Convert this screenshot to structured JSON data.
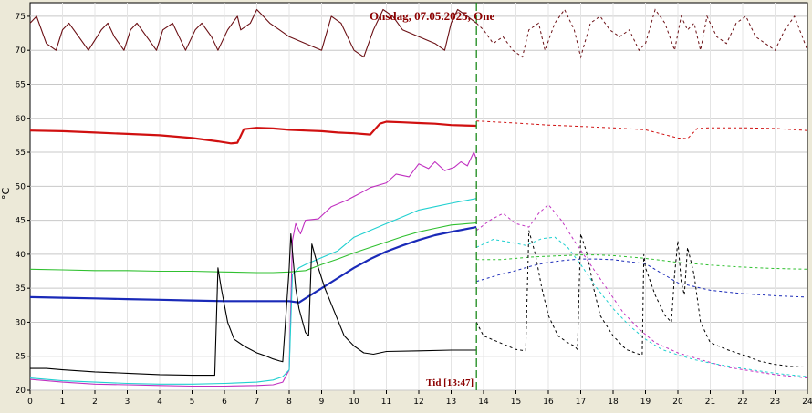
{
  "chart_data": {
    "type": "line",
    "title": "Onsdag, 07.05.2025, One",
    "ylabel": "°C",
    "now_label": "Tid [13:47]",
    "now_x": 13.78,
    "xlim": [
      0,
      24
    ],
    "ylim": [
      20,
      77
    ],
    "xticks": [
      0,
      1,
      2,
      3,
      4,
      5,
      6,
      7,
      8,
      9,
      10,
      11,
      12,
      13,
      14,
      15,
      16,
      17,
      18,
      19,
      20,
      21,
      22,
      23,
      24
    ],
    "yticks": [
      20,
      25,
      30,
      35,
      40,
      45,
      50,
      55,
      60,
      65,
      70,
      75
    ],
    "grid": true,
    "series": [
      {
        "color": "#6b0f14",
        "actual": {
          "x": [
            0,
            0.2,
            0.5,
            0.8,
            1,
            1.2,
            1.5,
            1.8,
            2.2,
            2.4,
            2.6,
            2.9,
            3.1,
            3.3,
            3.6,
            3.9,
            4.1,
            4.4,
            4.6,
            4.8,
            5.1,
            5.3,
            5.6,
            5.8,
            6.1,
            6.4,
            6.5,
            6.8,
            7,
            7.2,
            7.4,
            7.7,
            8,
            8.5,
            9,
            9.3,
            9.6,
            10,
            10.3,
            10.6,
            10.9,
            11.2,
            11.5,
            12,
            12.5,
            12.8,
            13,
            13.2,
            13.5,
            13.78
          ],
          "y": [
            74,
            75,
            71,
            70,
            73,
            74,
            72,
            70,
            73,
            74,
            72,
            70,
            73,
            74,
            72,
            70,
            73,
            74,
            72,
            70,
            73,
            74,
            72,
            70,
            73,
            75,
            73,
            74,
            76,
            75,
            74,
            73,
            72,
            71,
            70,
            75,
            74,
            70,
            69,
            73,
            76,
            75,
            73,
            72,
            71,
            70,
            74,
            76,
            75,
            74
          ]
        },
        "forecast": {
          "x": [
            13.78,
            14,
            14.3,
            14.6,
            14.9,
            15.2,
            15.4,
            15.7,
            15.9,
            16.2,
            16.5,
            16.8,
            17,
            17.3,
            17.6,
            17.9,
            18.2,
            18.5,
            18.8,
            19,
            19.3,
            19.6,
            19.9,
            20.1,
            20.3,
            20.5,
            20.7,
            20.9,
            21.2,
            21.5,
            21.8,
            22.1,
            22.4,
            22.7,
            23,
            23.3,
            23.6,
            24
          ],
          "y": [
            74,
            73,
            71,
            72,
            70,
            69,
            73,
            74,
            70,
            74,
            76,
            73,
            69,
            74,
            75,
            73,
            72,
            73,
            70,
            71,
            76,
            74,
            70,
            75,
            73,
            74,
            70,
            75,
            72,
            71,
            74,
            75,
            72,
            71,
            70,
            73,
            75,
            70
          ]
        }
      },
      {
        "color": "#d01010",
        "actual": {
          "x": [
            0,
            1,
            2,
            3,
            4,
            5,
            5.8,
            6.2,
            6.4,
            6.6,
            7,
            7.5,
            8,
            8.5,
            9,
            9.5,
            10,
            10.5,
            10.8,
            11,
            11.5,
            12,
            12.5,
            13,
            13.78
          ],
          "y": [
            58.2,
            58.1,
            57.9,
            57.7,
            57.5,
            57.1,
            56.6,
            56.3,
            56.4,
            58.4,
            58.6,
            58.5,
            58.3,
            58.2,
            58.1,
            57.9,
            57.8,
            57.6,
            59.2,
            59.5,
            59.4,
            59.3,
            59.2,
            59,
            58.9
          ]
        },
        "forecast": {
          "x": [
            13.78,
            15,
            16,
            17,
            18,
            19,
            20,
            20.3,
            20.6,
            21,
            22,
            23,
            24
          ],
          "y": [
            59.6,
            59.3,
            59,
            58.8,
            58.6,
            58.3,
            57.1,
            57,
            58.5,
            58.6,
            58.6,
            58.5,
            58.2
          ]
        }
      },
      {
        "color": "#c030c0",
        "actual": {
          "x": [
            0,
            1,
            2,
            3,
            4,
            5,
            6,
            7,
            7.5,
            7.8,
            8,
            8.1,
            8.2,
            8.35,
            8.5,
            8.9,
            9.3,
            9.8,
            10.2,
            10.5,
            11,
            11.3,
            11.7,
            12,
            12.3,
            12.5,
            12.8,
            13.1,
            13.3,
            13.5,
            13.7,
            13.78
          ],
          "y": [
            21.6,
            21.2,
            20.9,
            20.8,
            20.7,
            20.6,
            20.6,
            20.7,
            20.8,
            21.2,
            23,
            42,
            44.5,
            43,
            45,
            45.2,
            47,
            48,
            49,
            49.8,
            50.5,
            51.8,
            51.4,
            53.3,
            52.6,
            53.6,
            52.3,
            52.8,
            53.6,
            53,
            55,
            54
          ]
        },
        "forecast": {
          "x": [
            13.78,
            14.2,
            14.6,
            15,
            15.4,
            15.7,
            16,
            16.4,
            16.8,
            17.3,
            17.8,
            18.3,
            18.8,
            19.3,
            20,
            20.7,
            21.5,
            22.3,
            23,
            24
          ],
          "y": [
            43.5,
            45,
            46,
            44.5,
            44,
            46,
            47.3,
            45,
            42,
            38.5,
            35,
            31.5,
            29,
            27,
            25.5,
            24.5,
            23.4,
            22.8,
            22.3,
            21.8
          ]
        }
      },
      {
        "color": "#20d0d0",
        "actual": {
          "x": [
            0,
            1,
            2,
            3,
            4,
            5,
            6,
            7,
            7.5,
            7.8,
            8,
            8.1,
            8.3,
            8.5,
            9,
            9.5,
            10,
            10.5,
            11,
            11.5,
            12,
            12.5,
            13,
            13.78
          ],
          "y": [
            21.8,
            21.4,
            21.2,
            21,
            20.9,
            20.9,
            21,
            21.2,
            21.5,
            22,
            23,
            37,
            38,
            38.5,
            39.5,
            40.5,
            42.5,
            43.5,
            44.5,
            45.5,
            46.5,
            47,
            47.5,
            48.2
          ]
        },
        "forecast": {
          "x": [
            13.78,
            14.3,
            14.8,
            15.3,
            15.8,
            16.2,
            16.6,
            17,
            17.5,
            18,
            18.5,
            19,
            19.5,
            20,
            20.5,
            21,
            22,
            23,
            24
          ],
          "y": [
            41,
            42.2,
            41.8,
            41.3,
            42.3,
            42.5,
            41,
            38.5,
            35,
            32,
            29.5,
            27.5,
            26,
            25.2,
            24.5,
            24,
            23.2,
            22.5,
            22
          ]
        }
      },
      {
        "color": "#30c030",
        "actual": {
          "x": [
            0,
            1,
            2,
            3,
            4,
            5,
            6,
            7,
            7.5,
            8,
            8.5,
            9,
            9.5,
            10,
            10.5,
            11,
            11.5,
            12,
            12.5,
            13,
            13.78
          ],
          "y": [
            37.8,
            37.7,
            37.6,
            37.6,
            37.5,
            37.5,
            37.4,
            37.3,
            37.3,
            37.4,
            37.6,
            38.5,
            39.3,
            40.2,
            41,
            41.8,
            42.6,
            43.3,
            43.8,
            44.3,
            44.6
          ]
        },
        "forecast": {
          "x": [
            13.78,
            14.5,
            15,
            15.5,
            16,
            16.5,
            17,
            17.5,
            18,
            18.5,
            19,
            20,
            21,
            22,
            23,
            24
          ],
          "y": [
            39.2,
            39.2,
            39.4,
            39.6,
            39.7,
            39.8,
            39.9,
            39.9,
            39.8,
            39.6,
            39.4,
            38.8,
            38.4,
            38.1,
            37.9,
            37.8
          ]
        }
      },
      {
        "color": "#1a2ab8",
        "actual": {
          "x": [
            0,
            1,
            2,
            3,
            4,
            5,
            6,
            7,
            7.5,
            8,
            8.3,
            8.6,
            9,
            9.5,
            10,
            10.5,
            11,
            11.5,
            12,
            12.5,
            13,
            13.78
          ],
          "y": [
            33.7,
            33.6,
            33.5,
            33.4,
            33.3,
            33.2,
            33.1,
            33.1,
            33.1,
            33.1,
            32.9,
            33.8,
            35,
            36.5,
            38,
            39.3,
            40.4,
            41.3,
            42.1,
            42.8,
            43.3,
            44
          ]
        },
        "forecast": {
          "x": [
            13.78,
            14.5,
            15,
            15.5,
            16,
            16.5,
            17,
            17.5,
            18,
            19,
            20,
            21,
            22,
            23,
            24
          ],
          "y": [
            36,
            37,
            37.6,
            38.3,
            38.8,
            39.1,
            39.3,
            39.3,
            39.2,
            38.6,
            35.8,
            34.7,
            34.2,
            33.9,
            33.7
          ]
        }
      },
      {
        "color": "#000000",
        "actual": {
          "x": [
            0,
            0.5,
            1,
            2,
            3,
            4,
            5,
            5.7,
            5.8,
            5.9,
            6.1,
            6.3,
            6.6,
            7,
            7.3,
            7.5,
            7.7,
            7.8,
            7.9,
            8.0,
            8.05,
            8.2,
            8.3,
            8.5,
            8.6,
            8.7,
            8.9,
            9.1,
            9.4,
            9.7,
            10,
            10.3,
            10.6,
            11,
            12,
            13,
            13.78
          ],
          "y": [
            23.2,
            23.2,
            23,
            22.7,
            22.5,
            22.3,
            22.2,
            22.2,
            38,
            35,
            30,
            27.5,
            26.5,
            25.5,
            25,
            24.6,
            24.3,
            24.2,
            31,
            38,
            43,
            35,
            32,
            28.5,
            28,
            41.5,
            38,
            35,
            31.5,
            28,
            26.5,
            25.5,
            25.3,
            25.7,
            25.8,
            25.9,
            25.9
          ]
        },
        "forecast": {
          "x": [
            13.78,
            14,
            14.5,
            15,
            15.3,
            15.4,
            15.6,
            15.8,
            16,
            16.3,
            16.6,
            16.8,
            16.9,
            17,
            17.2,
            17.4,
            17.6,
            18,
            18.4,
            18.8,
            18.9,
            18.95,
            19,
            19.3,
            19.6,
            19.8,
            19.9,
            20,
            20.1,
            20.2,
            20.3,
            20.5,
            20.7,
            21,
            21.5,
            22,
            22.5,
            23,
            23.5,
            24
          ],
          "y": [
            30,
            28,
            27,
            26,
            25.8,
            43.5,
            40,
            35,
            31,
            28,
            27,
            26.5,
            26,
            43,
            40,
            35,
            31,
            28,
            26,
            25.3,
            25.2,
            40,
            38,
            34,
            31,
            30,
            37,
            42,
            36,
            34,
            41,
            37,
            30,
            27,
            26,
            25.2,
            24.3,
            23.8,
            23.5,
            23.4
          ]
        }
      }
    ]
  }
}
